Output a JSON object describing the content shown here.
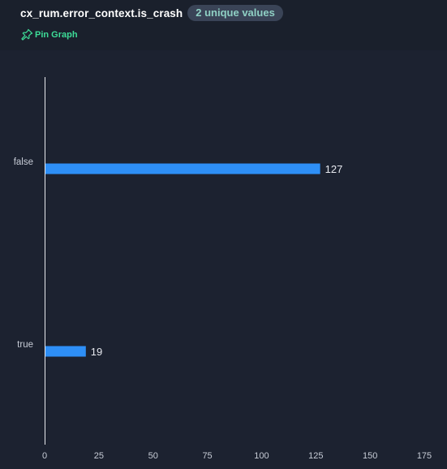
{
  "header": {
    "field_name": "cx_rum.error_context.is_crash",
    "unique_values": "2 unique values",
    "pin_label": "Pin Graph",
    "pin_icon": "pin-icon"
  },
  "colors": {
    "bar": "#2e8ff6",
    "accent": "#3ddc97",
    "background": "#1c2230"
  },
  "chart_data": {
    "type": "bar",
    "orientation": "horizontal",
    "categories": [
      "false",
      "true"
    ],
    "values": [
      127,
      19
    ],
    "xlim": [
      0,
      175
    ],
    "xticks": [
      0,
      25,
      50,
      75,
      100,
      125,
      150,
      175
    ],
    "title": "",
    "xlabel": "",
    "ylabel": "",
    "grid": false,
    "data_labels": true
  }
}
